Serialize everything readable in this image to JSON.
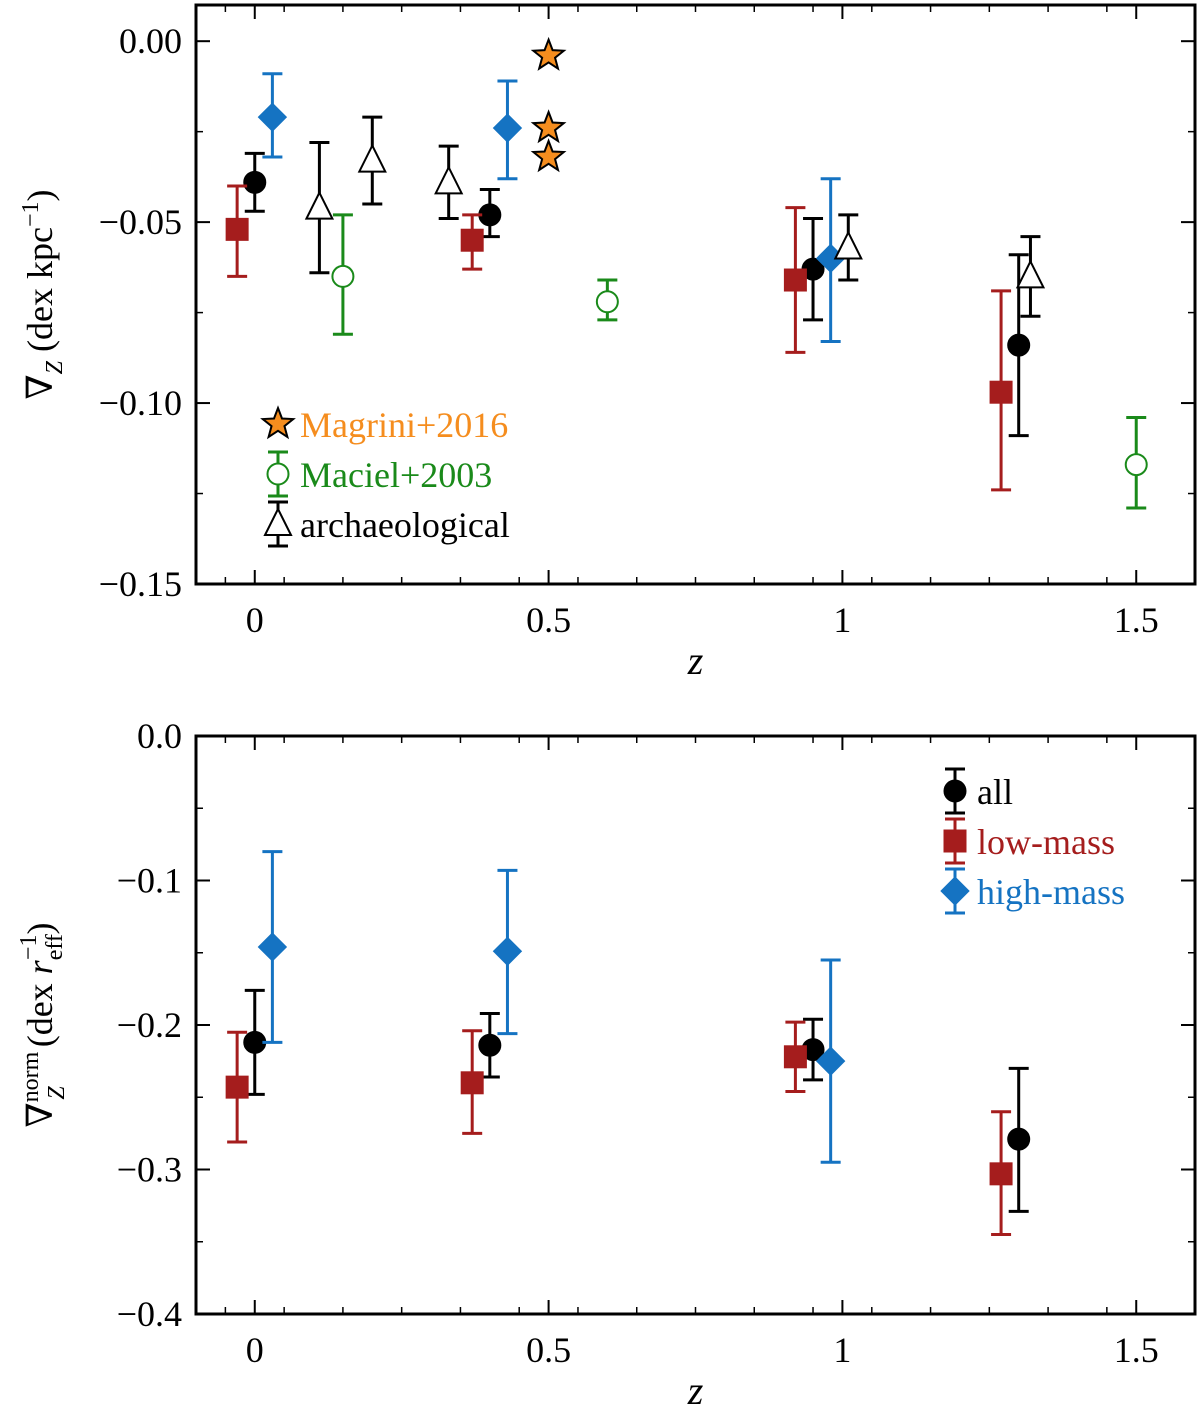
{
  "chart_data": [
    {
      "type": "scatter",
      "xlabel": "z",
      "ylabel": "∇Z (dex kpc⁻¹)",
      "ylabel_parts": {
        "nabla": "∇",
        "sub": "Z",
        "text": " (dex kpc",
        "sup": "−1",
        "close": ")"
      },
      "xlim": [
        -0.1,
        1.6
      ],
      "ylim": [
        -0.15,
        0.01
      ],
      "xticks": [
        0,
        0.5,
        1,
        1.5
      ],
      "xtick_labels": [
        "0",
        "0.5",
        "1",
        "1.5"
      ],
      "yticks": [
        0.0,
        -0.05,
        -0.1,
        -0.15
      ],
      "ytick_labels": [
        "0.00",
        "−0.05",
        "−0.10",
        "−0.15"
      ],
      "legend": {
        "position": "lower-left",
        "entries": [
          "Magrini+2016",
          "Maciel+2003",
          "archaeological"
        ]
      },
      "series": [
        {
          "name": "all",
          "marker": "circle",
          "color": "#000000",
          "filled": true,
          "points": [
            {
              "x": 0.0,
              "y": -0.039,
              "ylo": -0.047,
              "yhi": -0.031
            },
            {
              "x": 0.4,
              "y": -0.048,
              "ylo": -0.054,
              "yhi": -0.041
            },
            {
              "x": 0.95,
              "y": -0.063,
              "ylo": -0.077,
              "yhi": -0.049
            },
            {
              "x": 1.3,
              "y": -0.084,
              "ylo": -0.109,
              "yhi": -0.059
            }
          ]
        },
        {
          "name": "low-mass",
          "marker": "square",
          "color": "#a51d1d",
          "filled": true,
          "points": [
            {
              "x": -0.03,
              "y": -0.052,
              "ylo": -0.065,
              "yhi": -0.04
            },
            {
              "x": 0.37,
              "y": -0.055,
              "ylo": -0.063,
              "yhi": -0.048
            },
            {
              "x": 0.92,
              "y": -0.066,
              "ylo": -0.086,
              "yhi": -0.046
            },
            {
              "x": 1.27,
              "y": -0.097,
              "ylo": -0.124,
              "yhi": -0.069
            }
          ]
        },
        {
          "name": "high-mass",
          "marker": "diamond",
          "color": "#1573c2",
          "filled": true,
          "points": [
            {
              "x": 0.03,
              "y": -0.021,
              "ylo": -0.032,
              "yhi": -0.009
            },
            {
              "x": 0.43,
              "y": -0.024,
              "ylo": -0.038,
              "yhi": -0.011
            },
            {
              "x": 0.98,
              "y": -0.06,
              "ylo": -0.083,
              "yhi": -0.038
            }
          ]
        },
        {
          "name": "Magrini+2016",
          "marker": "star",
          "color": "#f58d1e",
          "filled": true,
          "points": [
            {
              "x": 0.5,
              "y": -0.004
            },
            {
              "x": 0.5,
              "y": -0.024
            },
            {
              "x": 0.5,
              "y": -0.032
            }
          ]
        },
        {
          "name": "Maciel+2003",
          "marker": "circle",
          "color": "#1a8a1a",
          "filled": false,
          "points": [
            {
              "x": 0.15,
              "y": -0.065,
              "ylo": -0.081,
              "yhi": -0.048
            },
            {
              "x": 0.6,
              "y": -0.072,
              "ylo": -0.077,
              "yhi": -0.066
            },
            {
              "x": 1.5,
              "y": -0.117,
              "ylo": -0.129,
              "yhi": -0.104
            }
          ]
        },
        {
          "name": "archaeological",
          "marker": "triangle",
          "color": "#000000",
          "filled": false,
          "points": [
            {
              "x": 0.11,
              "y": -0.046,
              "ylo": -0.064,
              "yhi": -0.028
            },
            {
              "x": 0.2,
              "y": -0.033,
              "ylo": -0.045,
              "yhi": -0.021
            },
            {
              "x": 0.33,
              "y": -0.039,
              "ylo": -0.049,
              "yhi": -0.029
            },
            {
              "x": 1.01,
              "y": -0.057,
              "ylo": -0.066,
              "yhi": -0.048
            },
            {
              "x": 1.32,
              "y": -0.065,
              "ylo": -0.076,
              "yhi": -0.054
            }
          ]
        }
      ]
    },
    {
      "type": "scatter",
      "xlabel": "z",
      "ylabel": "∇Z^norm (dex r_eff⁻¹)",
      "ylabel_parts": {
        "nabla": "∇",
        "sub": "Z",
        "sup": "norm",
        "text": " (dex ",
        "r": "r",
        "rsub": "eff",
        "rsup": "−1",
        "close": ")"
      },
      "xlim": [
        -0.1,
        1.6
      ],
      "ylim": [
        -0.4,
        0.0
      ],
      "xticks": [
        0,
        0.5,
        1,
        1.5
      ],
      "xtick_labels": [
        "0",
        "0.5",
        "1",
        "1.5"
      ],
      "yticks": [
        0.0,
        -0.1,
        -0.2,
        -0.3,
        -0.4
      ],
      "ytick_labels": [
        "0.0",
        "−0.1",
        "−0.2",
        "−0.3",
        "−0.4"
      ],
      "legend": {
        "position": "upper-right",
        "entries": [
          "all",
          "low-mass",
          "high-mass"
        ]
      },
      "series": [
        {
          "name": "all",
          "marker": "circle",
          "color": "#000000",
          "filled": true,
          "points": [
            {
              "x": 0.0,
              "y": -0.212,
              "ylo": -0.248,
              "yhi": -0.176
            },
            {
              "x": 0.4,
              "y": -0.214,
              "ylo": -0.236,
              "yhi": -0.192
            },
            {
              "x": 0.95,
              "y": -0.217,
              "ylo": -0.238,
              "yhi": -0.196
            },
            {
              "x": 1.3,
              "y": -0.279,
              "ylo": -0.329,
              "yhi": -0.23
            }
          ]
        },
        {
          "name": "low-mass",
          "marker": "square",
          "color": "#a51d1d",
          "filled": true,
          "points": [
            {
              "x": -0.03,
              "y": -0.243,
              "ylo": -0.281,
              "yhi": -0.205
            },
            {
              "x": 0.37,
              "y": -0.24,
              "ylo": -0.275,
              "yhi": -0.204
            },
            {
              "x": 0.92,
              "y": -0.222,
              "ylo": -0.246,
              "yhi": -0.198
            },
            {
              "x": 1.27,
              "y": -0.303,
              "ylo": -0.345,
              "yhi": -0.26
            }
          ]
        },
        {
          "name": "high-mass",
          "marker": "diamond",
          "color": "#1573c2",
          "filled": true,
          "points": [
            {
              "x": 0.03,
              "y": -0.146,
              "ylo": -0.212,
              "yhi": -0.08
            },
            {
              "x": 0.43,
              "y": -0.149,
              "ylo": -0.206,
              "yhi": -0.093
            },
            {
              "x": 0.98,
              "y": -0.225,
              "ylo": -0.295,
              "yhi": -0.155
            }
          ]
        }
      ]
    }
  ]
}
